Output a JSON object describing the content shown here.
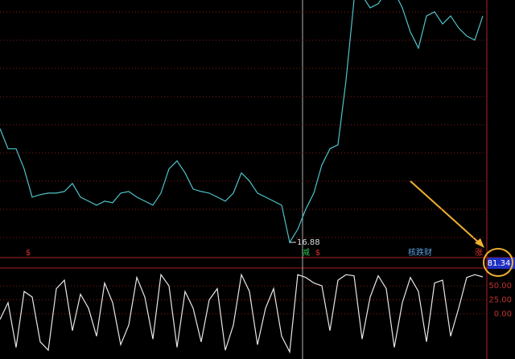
{
  "chart_data": [
    {
      "type": "line",
      "color": "#4fc3c8",
      "ylim": [
        16.2,
        27.7
      ],
      "values": [
        21.96,
        21.06,
        21.06,
        20.16,
        18.9,
        19.01,
        19.08,
        19.08,
        19.15,
        19.51,
        18.9,
        18.72,
        18.54,
        18.72,
        18.65,
        19.08,
        19.15,
        18.9,
        18.72,
        18.54,
        19.08,
        20.16,
        20.52,
        19.98,
        19.26,
        19.15,
        19.08,
        18.9,
        18.72,
        19.08,
        19.98,
        19.62,
        19.08,
        18.9,
        18.72,
        18.54,
        16.88,
        17.46,
        18.36,
        19.08,
        20.34,
        21.06,
        21.24,
        24.11,
        27.71,
        27.89,
        27.35,
        27.53,
        28.07,
        28.07,
        27.35,
        26.27,
        25.55,
        26.99,
        27.17,
        26.63,
        26.99,
        26.45,
        26.09,
        25.91,
        26.99
      ],
      "low_label": "16.88",
      "markers": [
        {
          "label": "$",
          "color": "#e03030"
        },
        {
          "label": "减",
          "color": "#2fbf4f"
        },
        {
          "label": "$",
          "color": "#e03030"
        },
        {
          "label": "核跌财",
          "color": "#5aa0e0"
        },
        {
          "label": "涨",
          "color": "#e03030"
        }
      ]
    },
    {
      "type": "line",
      "color": "#e8e8e8",
      "ylim": [
        -72,
        76
      ],
      "yticks": [
        {
          "value": 50,
          "label": "50.00"
        },
        {
          "value": 25,
          "label": "25.00"
        },
        {
          "value": 0,
          "label": "0.00"
        }
      ],
      "grid": true,
      "readout": "81.34",
      "values": [
        -10,
        20,
        -60,
        40,
        30,
        -50,
        -65,
        45,
        60,
        -30,
        35,
        10,
        -40,
        55,
        20,
        -55,
        -20,
        65,
        30,
        -45,
        70,
        50,
        -60,
        40,
        10,
        -50,
        25,
        45,
        -65,
        -20,
        70,
        40,
        -55,
        10,
        45,
        -40,
        -68,
        70,
        65,
        55,
        50,
        -30,
        60,
        70,
        68,
        -45,
        30,
        68,
        45,
        -60,
        20,
        65,
        40,
        -50,
        55,
        60,
        -40,
        10,
        65,
        70,
        66
      ]
    }
  ]
}
